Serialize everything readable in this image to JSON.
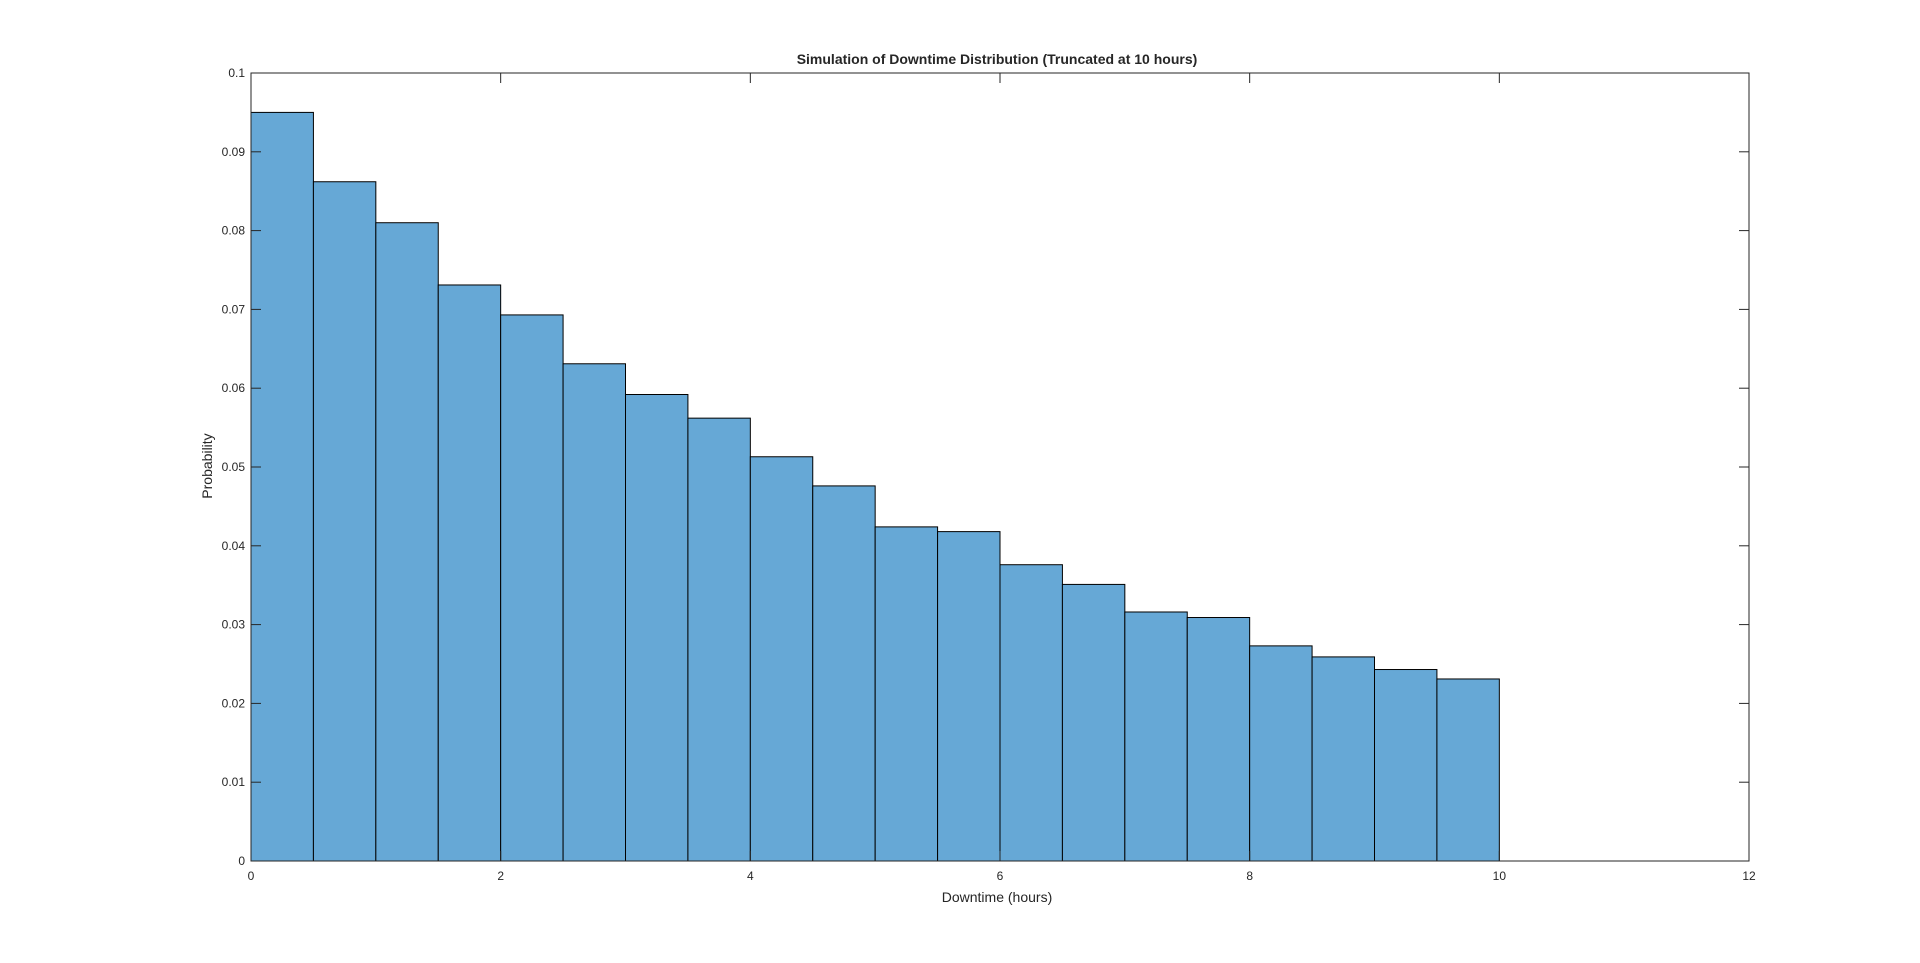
{
  "chart_data": {
    "type": "bar",
    "title": "Simulation of Downtime Distribution (Truncated at 10 hours)",
    "xlabel": "Downtime (hours)",
    "ylabel": "Probability",
    "xlim": [
      0,
      12
    ],
    "ylim": [
      0,
      0.1
    ],
    "xticks": [
      "0",
      "2",
      "4",
      "6",
      "8",
      "10",
      "12"
    ],
    "yticks": [
      "0",
      "0.01",
      "0.02",
      "0.03",
      "0.04",
      "0.05",
      "0.06",
      "0.07",
      "0.08",
      "0.09",
      "0.1"
    ],
    "bin_edges": [
      0,
      0.5,
      1,
      1.5,
      2,
      2.5,
      3,
      3.5,
      4,
      4.5,
      5,
      5.5,
      6,
      6.5,
      7,
      7.5,
      8,
      8.5,
      9,
      9.5,
      10
    ],
    "values": [
      0.095,
      0.0862,
      0.081,
      0.0731,
      0.0693,
      0.0631,
      0.0592,
      0.0562,
      0.0513,
      0.0476,
      0.0424,
      0.0418,
      0.0376,
      0.0351,
      0.0316,
      0.0309,
      0.0273,
      0.0259,
      0.0243,
      0.0231
    ],
    "bar_color": "#66a8d6",
    "edge_color": "#000000",
    "grid": false
  }
}
